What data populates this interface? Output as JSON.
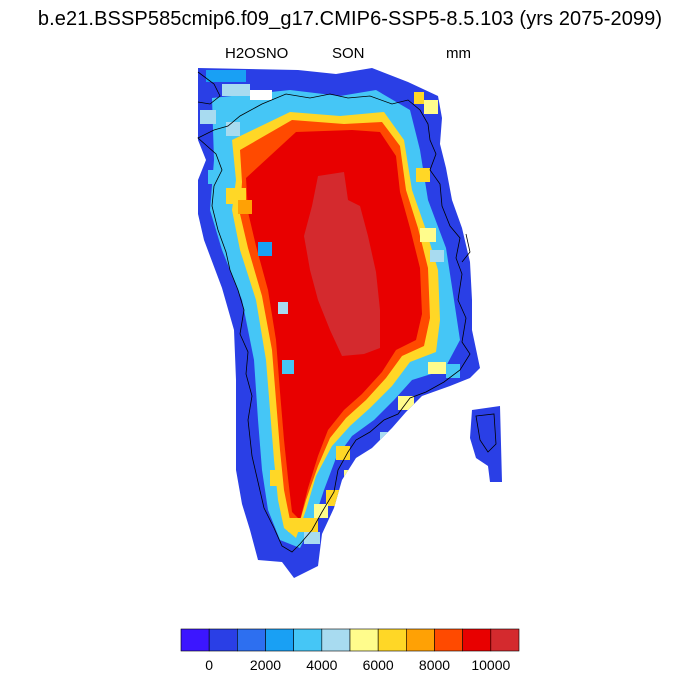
{
  "title": "b.e21.BSSP585cmip6.f09_g17.CMIP6-SSP5-8.5.103 (yrs 2075-2099)",
  "variable": "H2OSNO",
  "season": "SON",
  "units": "mm",
  "colorbar": {
    "colors": [
      "#3c16ff",
      "#2a3fe6",
      "#2d6ff0",
      "#19a0f4",
      "#45c6f6",
      "#a8dbf0",
      "#fffc8c",
      "#ffd726",
      "#ffa105",
      "#ff4a00",
      "#e80000",
      "#d42a2e"
    ],
    "tick_labels": [
      "0",
      "2000",
      "4000",
      "6000",
      "8000",
      "10000"
    ]
  },
  "map": {
    "region": "Greenland",
    "map_colors": {
      "coast": "#2a3fe6",
      "ice": "#e80000",
      "summit": "#d42a2e"
    }
  }
}
